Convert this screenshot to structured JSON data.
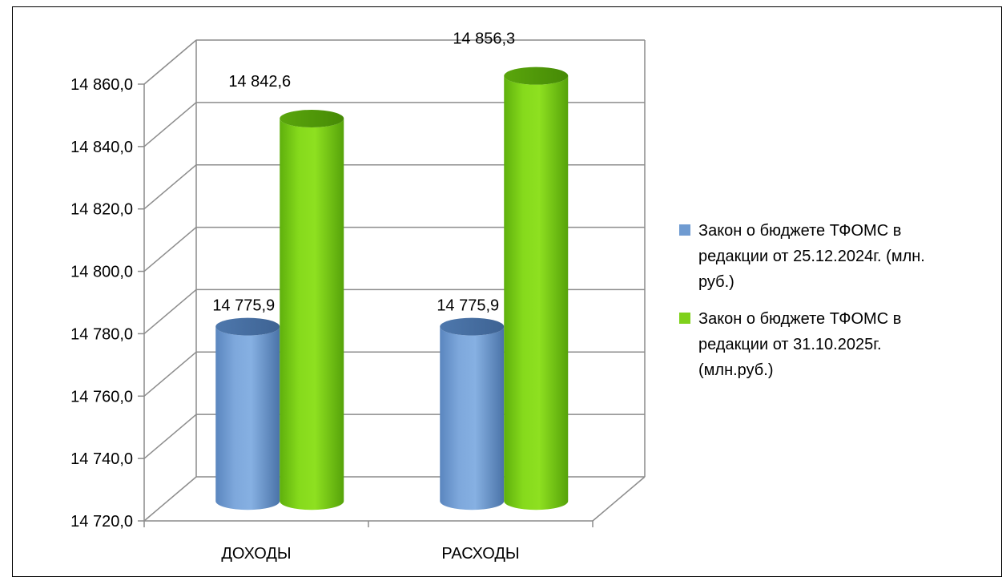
{
  "chart_data": {
    "type": "bar",
    "style": "3d-cylinder",
    "categories": [
      "ДОХОДЫ",
      "РАСХОДЫ"
    ],
    "series": [
      {
        "name": "Закон о бюджете ТФОМС  в редакции от 25.12.2024г. (млн. руб.)",
        "legend_lines": [
          "Закон о бюджете ТФОМС  в",
          "редакции от 25.12.2024г. (млн.",
          "руб.)"
        ],
        "values": [
          14775.9,
          14775.9
        ],
        "labels": [
          "14 775,9",
          "14 775,9"
        ],
        "color": "#6f9bd1"
      },
      {
        "name": "Закон о бюджете  ТФОМС в редакции от 31.10.2025г. (млн.руб.)",
        "legend_lines": [
          "Закон о бюджете  ТФОМС в",
          "редакции от 31.10.2025г.",
          "(млн.руб.)"
        ],
        "values": [
          14842.6,
          14856.3
        ],
        "labels": [
          "14 842,6",
          "14 856,3"
        ],
        "color": "#7fd11b"
      }
    ],
    "ylim": [
      14720,
      14860
    ],
    "yticks": [
      14720,
      14740,
      14760,
      14780,
      14800,
      14820,
      14840,
      14860
    ],
    "ytick_labels": [
      "14 720,0",
      "14 740,0",
      "14 760,0",
      "14 780,0",
      "14 800,0",
      "14 820,0",
      "14 840,0",
      "14 860,0"
    ],
    "grid": true,
    "legend_position": "right",
    "title": "",
    "xlabel": "",
    "ylabel": ""
  }
}
